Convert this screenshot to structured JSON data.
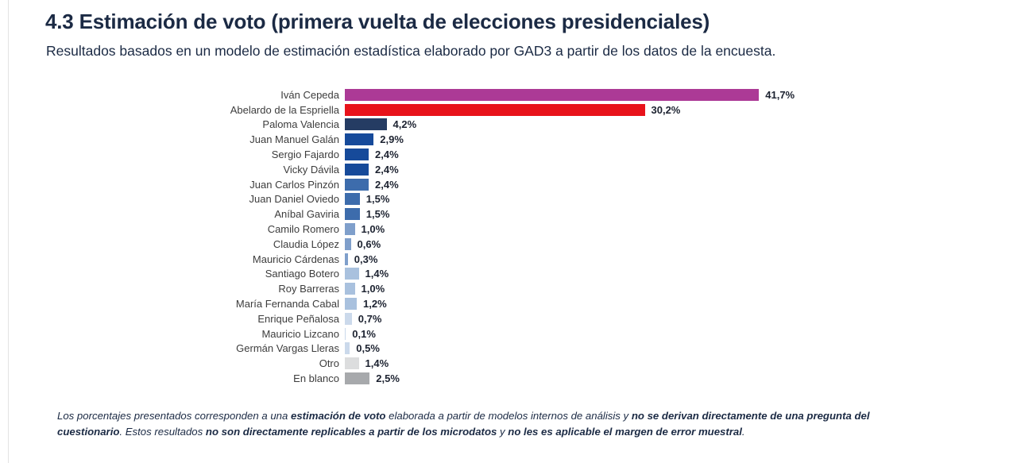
{
  "header": {
    "title": "4.3 Estimación de voto (primera vuelta de elecciones presidenciales)",
    "subtitle": "Resultados basados en un modelo de estimación estadística elaborado por GAD3 a partir de los datos de la encuesta."
  },
  "colors": {
    "title_text": "#1B2A44",
    "candidate_label_text": "#3D3D3D",
    "value_label_text": "#1C2230",
    "page_divider": "#E3E3E3",
    "cepeda_magenta": "#AC3A96",
    "espriella_red": "#E8131B",
    "navy_dark": "#253C63",
    "blue_strong": "#164A9A",
    "blue_medium": "#3D6CAC",
    "blue_soft": "#7F9FCB",
    "blue_light": "#A9C1DE",
    "blue_pale": "#CBD9EB",
    "gray_light": "#DCDDDE",
    "gray_medium": "#A7A9AC"
  },
  "chart_data": {
    "type": "bar",
    "orientation": "horizontal",
    "title": "Estimación de voto (primera vuelta de elecciones presidenciales)",
    "unit": "%",
    "xlim": [
      0,
      45
    ],
    "grid": false,
    "legend": false,
    "categories": [
      "Iván Cepeda",
      "Abelardo de la Espriella",
      "Paloma Valencia",
      "Juan Manuel Galán",
      "Sergio Fajardo",
      "Vicky Dávila",
      "Juan Carlos Pinzón",
      "Juan Daniel Oviedo",
      "Aníbal Gaviria",
      "Camilo Romero",
      "Claudia López",
      "Mauricio Cárdenas",
      "Santiago Botero",
      "Roy Barreras",
      "María Fernanda Cabal",
      "Enrique Peñalosa",
      "Mauricio Lizcano",
      "Germán Vargas Lleras",
      "Otro",
      "En blanco"
    ],
    "values": [
      41.7,
      30.2,
      4.2,
      2.9,
      2.4,
      2.4,
      2.4,
      1.5,
      1.5,
      1.0,
      0.6,
      0.3,
      1.4,
      1.0,
      1.2,
      0.7,
      0.1,
      0.5,
      1.4,
      2.5
    ],
    "bars": [
      {
        "label": "Iván Cepeda",
        "value": 41.7,
        "value_label": "41,7%",
        "color": "#AC3A96"
      },
      {
        "label": "Abelardo de la Espriella",
        "value": 30.2,
        "value_label": "30,2%",
        "color": "#E8131B"
      },
      {
        "label": "Paloma Valencia",
        "value": 4.2,
        "value_label": "4,2%",
        "color": "#253C63"
      },
      {
        "label": "Juan Manuel Galán",
        "value": 2.9,
        "value_label": "2,9%",
        "color": "#164A9A"
      },
      {
        "label": "Sergio Fajardo",
        "value": 2.4,
        "value_label": "2,4%",
        "color": "#164A9A"
      },
      {
        "label": "Vicky Dávila",
        "value": 2.4,
        "value_label": "2,4%",
        "color": "#164A9A"
      },
      {
        "label": "Juan Carlos Pinzón",
        "value": 2.4,
        "value_label": "2,4%",
        "color": "#3D6CAC"
      },
      {
        "label": "Juan Daniel Oviedo",
        "value": 1.5,
        "value_label": "1,5%",
        "color": "#3D6CAC"
      },
      {
        "label": "Aníbal Gaviria",
        "value": 1.5,
        "value_label": "1,5%",
        "color": "#3D6CAC"
      },
      {
        "label": "Camilo Romero",
        "value": 1.0,
        "value_label": "1,0%",
        "color": "#7F9FCB"
      },
      {
        "label": "Claudia López",
        "value": 0.6,
        "value_label": "0,6%",
        "color": "#7F9FCB"
      },
      {
        "label": "Mauricio Cárdenas",
        "value": 0.3,
        "value_label": "0,3%",
        "color": "#7F9FCB"
      },
      {
        "label": "Santiago Botero",
        "value": 1.4,
        "value_label": "1,4%",
        "color": "#A9C1DE"
      },
      {
        "label": "Roy Barreras",
        "value": 1.0,
        "value_label": "1,0%",
        "color": "#A9C1DE"
      },
      {
        "label": "María Fernanda Cabal",
        "value": 1.2,
        "value_label": "1,2%",
        "color": "#A9C1DE"
      },
      {
        "label": "Enrique Peñalosa",
        "value": 0.7,
        "value_label": "0,7%",
        "color": "#CBD9EB"
      },
      {
        "label": "Mauricio Lizcano",
        "value": 0.1,
        "value_label": "0,1%",
        "color": "#CBD9EB"
      },
      {
        "label": "Germán Vargas Lleras",
        "value": 0.5,
        "value_label": "0,5%",
        "color": "#CBD9EB"
      },
      {
        "label": "Otro",
        "value": 1.4,
        "value_label": "1,4%",
        "color": "#DCDDDE"
      },
      {
        "label": "En blanco",
        "value": 2.5,
        "value_label": "2,5%",
        "color": "#A7A9AC"
      }
    ]
  },
  "footnote": {
    "lines": [
      [
        {
          "text": "Los porcentajes presentados corresponden a una ",
          "bold": false
        },
        {
          "text": "estimación de voto",
          "bold": true
        },
        {
          "text": " elaborada a partir de modelos internos de análisis y ",
          "bold": false
        },
        {
          "text": "no se derivan directamente de una pregunta del",
          "bold": true
        }
      ],
      [
        {
          "text": "cuestionario",
          "bold": true
        },
        {
          "text": ". Estos resultados ",
          "bold": false
        },
        {
          "text": "no son directamente replicables a partir de los microdatos",
          "bold": true
        },
        {
          "text": " y ",
          "bold": false
        },
        {
          "text": "no les es aplicable el margen de error muestral",
          "bold": true
        },
        {
          "text": ".",
          "bold": false
        }
      ]
    ]
  }
}
